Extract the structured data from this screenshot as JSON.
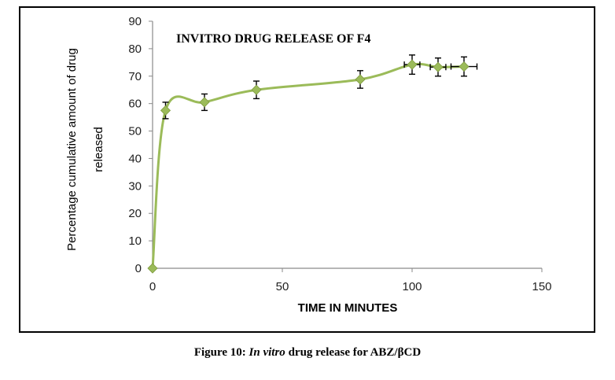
{
  "chart_data": {
    "type": "line",
    "title": "INVITRO DRUG RELEASE OF F4",
    "xlabel": "TIME IN MINUTES",
    "ylabel_lines": [
      "Percentage cumulative amount of drug",
      "released"
    ],
    "xlim": [
      0,
      150
    ],
    "ylim": [
      0,
      90
    ],
    "x_ticks": [
      0,
      50,
      100,
      150
    ],
    "y_ticks": [
      0,
      10,
      20,
      30,
      40,
      50,
      60,
      70,
      80,
      90
    ],
    "grid": false,
    "legend": "none",
    "smoothed": true,
    "series": [
      {
        "color": "#9BBB59",
        "x": [
          0,
          5,
          20,
          40,
          80,
          100,
          110,
          120
        ],
        "y": [
          0,
          57.5,
          60.5,
          65,
          68.8,
          74.2,
          73.3,
          73.5
        ],
        "y_error": [
          0,
          3,
          3,
          3.2,
          3.2,
          3.5,
          3.3,
          3.5
        ],
        "x_error": [
          0,
          0,
          0,
          0,
          0,
          3,
          3,
          5
        ]
      }
    ]
  },
  "caption": {
    "prefix": "Figure 10: ",
    "italic": "In vitro",
    "suffix": " drug release for ABZ/βCD"
  }
}
